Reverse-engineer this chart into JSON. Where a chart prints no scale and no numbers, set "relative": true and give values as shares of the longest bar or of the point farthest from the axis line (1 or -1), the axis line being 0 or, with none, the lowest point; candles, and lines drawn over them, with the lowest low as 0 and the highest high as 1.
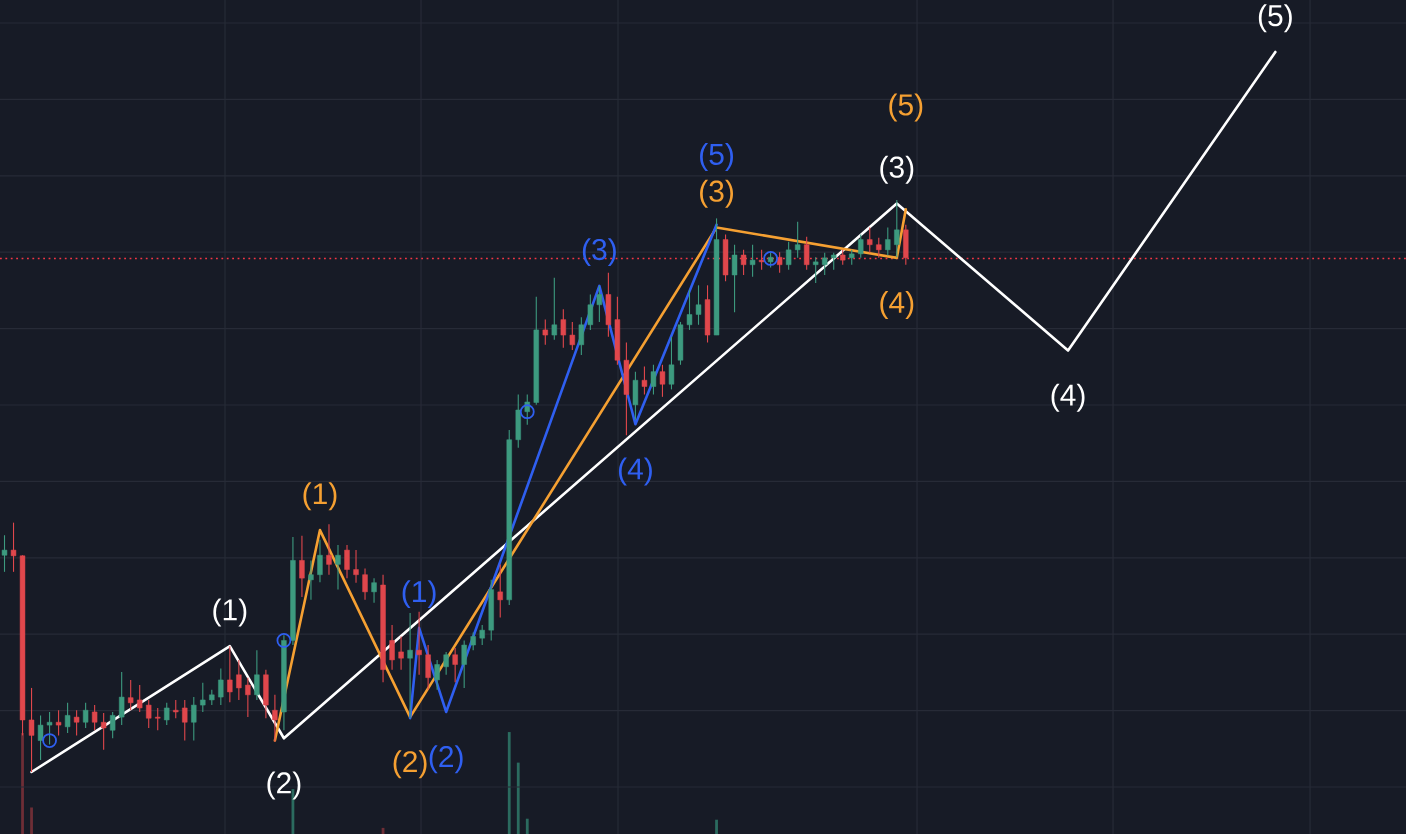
{
  "chart_data": [
    {
      "type": "candlestick",
      "relative": true,
      "grid": true,
      "categories": [
        null,
        null,
        null,
        null,
        null,
        null,
        null,
        null,
        null,
        null,
        null,
        null,
        null,
        null,
        null,
        null,
        null,
        null,
        null,
        null,
        null,
        null,
        null,
        null,
        null,
        null,
        null,
        null,
        null,
        null,
        null,
        null,
        null,
        null,
        null,
        null,
        null,
        null,
        null,
        null,
        null,
        null,
        null,
        null,
        null,
        null,
        null,
        null,
        null,
        null,
        null,
        null,
        null,
        null,
        null,
        null,
        null,
        null,
        null,
        null,
        null,
        null,
        null,
        null,
        null,
        null,
        null,
        null,
        null,
        null,
        null,
        null,
        null,
        null,
        null,
        null,
        null,
        null,
        null,
        null,
        null,
        null,
        null,
        null,
        null,
        null,
        null,
        null,
        null,
        null,
        null,
        null,
        null,
        null,
        null,
        null,
        null,
        null,
        null,
        null,
        null,
        null,
        null,
        null,
        null,
        null,
        null,
        null,
        null,
        null,
        null,
        null,
        null,
        null,
        null,
        null,
        null,
        null,
        null,
        null,
        null,
        null,
        null,
        null,
        null,
        null,
        null,
        null,
        null,
        null,
        null,
        null,
        null,
        null,
        null,
        null,
        null,
        null,
        null,
        null,
        null,
        null,
        null,
        null,
        null,
        null,
        null,
        null,
        null,
        null,
        null,
        null,
        null,
        null,
        null,
        null
      ],
      "colors": [
        "#3d9a7f",
        "#e0474c",
        "#e0474c",
        "#e0474c",
        "#3d9a7f",
        "#3d9a7f",
        "#e0474c",
        "#3d9a7f",
        "#e0474c",
        "#3d9a7f",
        "#e0474c",
        "#e0474c",
        "#3d9a7f",
        "#3d9a7f",
        "#e0474c",
        "#e0474c",
        "#e0474c",
        "#e0474c",
        "#3d9a7f",
        "#e0474c",
        "#e0474c",
        "#3d9a7f",
        "#3d9a7f",
        "#3d9a7f",
        "#3d9a7f",
        "#e0474c",
        "#e0474c",
        "#e0474c",
        "#3d9a7f",
        "#e0474c",
        "#e0474c",
        "#3d9a7f",
        "#3d9a7f",
        "#e0474c",
        "#3d9a7f",
        "#3d9a7f",
        "#e0474c",
        "#3d9a7f",
        "#e0474c",
        "#e0474c",
        "#e0474c",
        "#3d9a7f",
        "#e0474c",
        "#e0474c",
        "#e0474c",
        "#3d9a7f",
        "#e0474c",
        "#e0474c",
        "#3d9a7f",
        "#3d9a7f",
        "#e0474c",
        "#3d9a7f",
        "#3d9a7f",
        "#3d9a7f",
        "#3d9a7f",
        "#e0474c",
        "#3d9a7f",
        "#3d9a7f",
        "#3d9a7f",
        "#3d9a7f",
        "#e0474c",
        "#3d9a7f",
        "#e0474c",
        "#e0474c",
        "#3d9a7f",
        "#3d9a7f",
        "#3d9a7f",
        "#e0474c",
        "#e0474c",
        "#e0474c",
        "#3d9a7f",
        "#e0474c",
        "#3d9a7f",
        "#e0474c",
        "#3d9a7f",
        "#3d9a7f",
        "#3d9a7f",
        "#3d9a7f",
        "#e0474c",
        "#3d9a7f",
        "#e0474c",
        "#3d9a7f",
        "#e0474c",
        "#3d9a7f",
        "#e0474c",
        "#3d9a7f",
        "#e0474c",
        "#3d9a7f",
        "#3d9a7f",
        "#e0474c",
        "#3d9a7f",
        "#3d9a7f",
        "#3d9a7f",
        "#e0474c",
        "#3d9a7f",
        "#3d9a7f",
        "#e0474c",
        "#e0474c",
        "#3d9a7f",
        "#3d9a7f",
        "#e0474c",
        null,
        null,
        null,
        null,
        null,
        null,
        null,
        null,
        null,
        null,
        null,
        null,
        null,
        null,
        null,
        null,
        null,
        null,
        null,
        null,
        null,
        null,
        null,
        null,
        null,
        null,
        null,
        null,
        null,
        null,
        null,
        null,
        null,
        null,
        null,
        null,
        null,
        null,
        null,
        null,
        null,
        null,
        null,
        null,
        null,
        null,
        null,
        null,
        null,
        null,
        null,
        null,
        null,
        null,
        null
      ],
      "ohlc": [
        [
          0.379,
          0.414,
          0.35,
          0.388
        ],
        [
          0.388,
          0.436,
          0.35,
          0.378
        ],
        [
          0.378,
          0.379,
          0.064,
          0.091
        ],
        [
          0.091,
          0.147,
          0,
          0.064
        ],
        [
          0.055,
          0.099,
          0.021,
          0.082
        ],
        [
          0.082,
          0.105,
          0.048,
          0.087
        ],
        [
          0.087,
          0.108,
          0.064,
          0.082
        ],
        [
          0.079,
          0.121,
          0.068,
          0.099
        ],
        [
          0.096,
          0.108,
          0.064,
          0.087
        ],
        [
          0.087,
          0.121,
          0.077,
          0.108
        ],
        [
          0.105,
          0.117,
          0.073,
          0.087
        ],
        [
          0.087,
          0.103,
          0.039,
          0.077
        ],
        [
          0.073,
          0.105,
          0.059,
          0.099
        ],
        [
          0.096,
          0.175,
          0.082,
          0.131
        ],
        [
          0.13,
          0.161,
          0.108,
          0.121
        ],
        [
          0.126,
          0.152,
          0.105,
          0.112
        ],
        [
          0.117,
          0.126,
          0.077,
          0.094
        ],
        [
          0.096,
          0.112,
          0.073,
          0.094
        ],
        [
          0.091,
          0.121,
          0.082,
          0.112
        ],
        [
          0.108,
          0.126,
          0.094,
          0.105
        ],
        [
          0.112,
          0.126,
          0.055,
          0.087
        ],
        [
          0.087,
          0.131,
          0.055,
          0.117
        ],
        [
          0.117,
          0.156,
          0.105,
          0.126
        ],
        [
          0.126,
          0.144,
          0.117,
          0.135
        ],
        [
          0.131,
          0.181,
          0.117,
          0.161
        ],
        [
          0.161,
          0.22,
          0.122,
          0.14
        ],
        [
          0.17,
          0.196,
          0.126,
          0.147
        ],
        [
          0.152,
          0.165,
          0.096,
          0.135
        ],
        [
          0.135,
          0.213,
          0.126,
          0.17
        ],
        [
          0.17,
          0.179,
          0.094,
          0.117
        ],
        [
          0.108,
          0.135,
          0.053,
          0.091
        ],
        [
          0.105,
          0.239,
          0.073,
          0.23
        ],
        [
          0.23,
          0.411,
          0.222,
          0.37
        ],
        [
          0.37,
          0.413,
          0.306,
          0.339
        ],
        [
          0.336,
          0.37,
          0.301,
          0.345
        ],
        [
          0.345,
          0.406,
          0.332,
          0.379
        ],
        [
          0.379,
          0.433,
          0.345,
          0.363
        ],
        [
          0.363,
          0.397,
          0.319,
          0.379
        ],
        [
          0.388,
          0.397,
          0.339,
          0.354
        ],
        [
          0.354,
          0.388,
          0.331,
          0.345
        ],
        [
          0.345,
          0.356,
          0.301,
          0.315
        ],
        [
          0.315,
          0.339,
          0.296,
          0.331
        ],
        [
          0.327,
          0.345,
          0.157,
          0.179
        ],
        [
          0.23,
          0.257,
          0.179,
          0.196
        ],
        [
          0.21,
          0.237,
          0.179,
          0.199
        ],
        [
          0.199,
          0.278,
          0.094,
          0.213
        ],
        [
          0.213,
          0.28,
          0.17,
          0.205
        ],
        [
          0.205,
          0.222,
          0.144,
          0.165
        ],
        [
          0.161,
          0.196,
          0.144,
          0.188
        ],
        [
          0.184,
          0.21,
          0.17,
          0.205
        ],
        [
          0.205,
          0.217,
          0.157,
          0.188
        ],
        [
          0.188,
          0.23,
          0.147,
          0.222
        ],
        [
          0.222,
          0.244,
          0.213,
          0.237
        ],
        [
          0.234,
          0.257,
          0.222,
          0.248
        ],
        [
          0.248,
          0.336,
          0.23,
          0.319
        ],
        [
          0.315,
          0.363,
          0.27,
          0.301
        ],
        [
          0.301,
          0.598,
          0.292,
          0.581
        ],
        [
          0.581,
          0.66,
          0.567,
          0.633
        ],
        [
          0.63,
          0.66,
          0.607,
          0.647
        ],
        [
          0.646,
          0.831,
          0.642,
          0.773
        ],
        [
          0.773,
          0.791,
          0.747,
          0.764
        ],
        [
          0.764,
          0.864,
          0.756,
          0.782
        ],
        [
          0.791,
          0.809,
          0.742,
          0.764
        ],
        [
          0.764,
          0.787,
          0.738,
          0.747
        ],
        [
          0.747,
          0.795,
          0.729,
          0.782
        ],
        [
          0.782,
          0.835,
          0.773,
          0.817
        ],
        [
          0.817,
          0.85,
          0.787,
          0.835
        ],
        [
          0.835,
          0.873,
          0.761,
          0.782
        ],
        [
          0.791,
          0.831,
          0.712,
          0.72
        ],
        [
          0.72,
          0.751,
          0.589,
          0.66
        ],
        [
          0.642,
          0.7,
          0.616,
          0.685
        ],
        [
          0.685,
          0.709,
          0.66,
          0.674
        ],
        [
          0.674,
          0.712,
          0.66,
          0.7
        ],
        [
          0.7,
          0.712,
          0.656,
          0.678
        ],
        [
          0.678,
          0.761,
          0.669,
          0.712
        ],
        [
          0.72,
          0.787,
          0.712,
          0.782
        ],
        [
          0.782,
          0.843,
          0.773,
          0.8
        ],
        [
          0.8,
          0.851,
          0.782,
          0.817
        ],
        [
          0.826,
          0.851,
          0.751,
          0.764
        ],
        [
          0.764,
          0.968,
          0.764,
          0.931
        ],
        [
          0.931,
          0.94,
          0.858,
          0.869
        ],
        [
          0.869,
          0.922,
          0.804,
          0.904
        ],
        [
          0.904,
          0.913,
          0.869,
          0.887
        ],
        [
          0.887,
          0.922,
          0.866,
          0.895
        ],
        [
          0.895,
          0.913,
          0.878,
          0.892
        ],
        [
          0.892,
          0.909,
          0.882,
          0.9
        ],
        [
          0.9,
          0.909,
          0.873,
          0.887
        ],
        [
          0.887,
          0.927,
          0.878,
          0.913
        ],
        [
          0.913,
          0.962,
          0.899,
          0.922
        ],
        [
          0.922,
          0.936,
          0.878,
          0.887
        ],
        [
          0.887,
          0.9,
          0.855,
          0.892
        ],
        [
          0.887,
          0.908,
          0.869,
          0.899
        ],
        [
          0.899,
          0.908,
          0.878,
          0.904
        ],
        [
          0.904,
          0.913,
          0.887,
          0.895
        ],
        [
          0.899,
          0.913,
          0.887,
          0.906
        ],
        [
          0.906,
          0.94,
          0.899,
          0.931
        ],
        [
          0.931,
          0.952,
          0.908,
          0.922
        ],
        [
          0.922,
          0.934,
          0.899,
          0.913
        ],
        [
          0.913,
          0.952,
          0.903,
          0.931
        ],
        [
          0.922,
          1,
          0.9,
          0.948
        ],
        [
          0.948,
          0.957,
          0.887,
          0.899
        ],
        null,
        null,
        null,
        null,
        null,
        null,
        null,
        null,
        null,
        null,
        null,
        null,
        null,
        null,
        null,
        null,
        null,
        null,
        null,
        null,
        null,
        null,
        null,
        null,
        null,
        null,
        null,
        null,
        null,
        null,
        null,
        null,
        null,
        null,
        null,
        null,
        null,
        null,
        null,
        null,
        null,
        null,
        null,
        null,
        null,
        null,
        null,
        null,
        null,
        null,
        null,
        null,
        null,
        null,
        null
      ],
      "series": [
        {
          "type": "line",
          "color": "#ffffff",
          "values": [
            null,
            null,
            null,
            0,
            null,
            null,
            null,
            null,
            null,
            null,
            null,
            null,
            null,
            null,
            null,
            null,
            null,
            null,
            null,
            null,
            null,
            null,
            null,
            null,
            null,
            0.22,
            null,
            null,
            null,
            null,
            null,
            0.059,
            null,
            null,
            null,
            null,
            null,
            null,
            null,
            null,
            null,
            null,
            null,
            null,
            null,
            null,
            null,
            null,
            null,
            null,
            null,
            null,
            null,
            null,
            null,
            null,
            null,
            null,
            null,
            null,
            null,
            null,
            null,
            null,
            null,
            null,
            null,
            null,
            null,
            null,
            null,
            null,
            null,
            null,
            null,
            null,
            null,
            null,
            null,
            null,
            null,
            null,
            null,
            null,
            null,
            null,
            null,
            null,
            null,
            null,
            null,
            null,
            null,
            null,
            null,
            null,
            null,
            null,
            null,
            0.994,
            null,
            null,
            null,
            null,
            null,
            null,
            null,
            null,
            null,
            null,
            null,
            null,
            null,
            null,
            null,
            null,
            null,
            null,
            0.737,
            null,
            null,
            null,
            null,
            null,
            null,
            null,
            null,
            null,
            null,
            null,
            null,
            null,
            null,
            null,
            null,
            null,
            null,
            null,
            null,
            null,
            null,
            1.259,
            null,
            null,
            null,
            null,
            null,
            null,
            null,
            null,
            null,
            null,
            null,
            null,
            null,
            null
          ]
        },
        {
          "type": "line",
          "color": "#f5a032",
          "values": [
            null,
            null,
            null,
            null,
            null,
            null,
            null,
            null,
            null,
            null,
            null,
            null,
            null,
            null,
            null,
            null,
            null,
            null,
            null,
            null,
            null,
            null,
            null,
            null,
            null,
            null,
            null,
            null,
            null,
            null,
            0.055,
            null,
            null,
            null,
            null,
            0.423,
            null,
            null,
            null,
            null,
            null,
            null,
            null,
            null,
            null,
            0.096,
            null,
            null,
            null,
            null,
            null,
            null,
            null,
            null,
            null,
            null,
            null,
            null,
            null,
            null,
            null,
            null,
            null,
            null,
            null,
            null,
            null,
            null,
            null,
            null,
            null,
            null,
            null,
            null,
            null,
            null,
            null,
            null,
            null,
            0.952,
            null,
            null,
            null,
            null,
            null,
            null,
            null,
            null,
            null,
            null,
            null,
            null,
            null,
            null,
            null,
            null,
            null,
            null,
            null,
            0.899,
            0.984,
            null,
            null,
            null,
            null,
            null,
            null,
            null,
            null,
            null,
            null,
            null,
            null,
            null,
            null,
            null,
            null,
            null,
            null,
            null,
            null,
            null,
            null,
            null,
            null,
            null,
            null,
            null,
            null,
            null,
            null,
            null,
            null,
            null,
            null,
            null,
            null,
            null,
            null,
            null,
            null,
            null,
            null,
            null,
            null,
            null,
            null,
            null,
            null,
            null,
            null,
            null,
            null,
            null,
            null,
            null
          ]
        },
        {
          "type": "line",
          "color": "#2f5ff0",
          "values": [
            null,
            null,
            null,
            null,
            null,
            null,
            null,
            null,
            null,
            null,
            null,
            null,
            null,
            null,
            null,
            null,
            null,
            null,
            null,
            null,
            null,
            null,
            null,
            null,
            null,
            null,
            null,
            null,
            null,
            null,
            null,
            null,
            null,
            null,
            null,
            null,
            null,
            null,
            null,
            null,
            null,
            null,
            null,
            null,
            null,
            0.094,
            0.252,
            null,
            null,
            0.105,
            null,
            null,
            null,
            null,
            null,
            null,
            null,
            null,
            null,
            null,
            null,
            null,
            null,
            null,
            null,
            null,
            0.85,
            null,
            null,
            null,
            0.608,
            null,
            null,
            null,
            null,
            null,
            null,
            null,
            null,
            0.957,
            null,
            null,
            null,
            null,
            null,
            null,
            null,
            null,
            null,
            null,
            null,
            null,
            null,
            null,
            null,
            null,
            null,
            null,
            null,
            null,
            null,
            null,
            null,
            null,
            null,
            null,
            null,
            null,
            null,
            null,
            null,
            null,
            null,
            null,
            null,
            null,
            null,
            null,
            null,
            null,
            null,
            null,
            null,
            null,
            null,
            null,
            null,
            null,
            null,
            null,
            null,
            null,
            null,
            null,
            null,
            null,
            null,
            null,
            null,
            null,
            null,
            null,
            null,
            null,
            null,
            null,
            null,
            null,
            null,
            null,
            null,
            null,
            null,
            null,
            null,
            null
          ]
        },
        {
          "type": "scatter",
          "color": "#2f5ff0",
          "marker": "circle",
          "values": [
            null,
            null,
            null,
            null,
            null,
            0.055,
            null,
            null,
            null,
            null,
            null,
            null,
            null,
            null,
            null,
            null,
            null,
            null,
            null,
            null,
            null,
            null,
            null,
            null,
            null,
            null,
            null,
            null,
            null,
            null,
            null,
            0.23,
            null,
            null,
            null,
            null,
            null,
            null,
            null,
            null,
            null,
            null,
            null,
            null,
            null,
            null,
            null,
            null,
            null,
            null,
            null,
            null,
            null,
            null,
            null,
            null,
            null,
            null,
            0.63,
            null,
            null,
            null,
            null,
            null,
            null,
            null,
            null,
            null,
            null,
            null,
            null,
            null,
            null,
            null,
            null,
            null,
            null,
            null,
            null,
            null,
            null,
            null,
            null,
            null,
            null,
            0.898,
            null,
            null,
            null,
            null,
            null,
            null,
            null,
            null,
            null,
            null,
            null,
            null,
            null,
            null,
            null,
            null,
            null,
            null,
            null,
            null,
            null,
            null,
            null,
            null,
            null,
            null,
            null,
            null,
            null,
            null,
            null,
            null,
            null,
            null,
            null,
            null,
            null,
            null,
            null,
            null,
            null,
            null,
            null,
            null,
            null,
            null,
            null,
            null,
            null,
            null,
            null,
            null,
            null,
            null,
            null,
            null,
            null,
            null,
            null,
            null,
            null,
            null,
            null,
            null,
            null,
            null,
            null,
            null,
            null,
            null
          ]
        }
      ],
      "annotations": [
        {
          "text": "(1)",
          "y": 0.22
        },
        {
          "text": "(2)",
          "y": 0.059
        },
        {
          "text": "(3)",
          "y": 0.994
        },
        {
          "text": "(4)",
          "y": 0.737
        },
        {
          "text": "(5)",
          "y": 1.259
        },
        {
          "text": "(1)",
          "y": 0.423
        },
        {
          "text": "(2)",
          "y": 0.096
        },
        {
          "text": "(3)",
          "y": 0.952
        },
        {
          "text": "(4)",
          "y": 0.899
        },
        {
          "text": "(5)",
          "y": 0.984
        },
        {
          "text": "(1)",
          "y": 0.252
        },
        {
          "text": "(2)",
          "y": 0.105
        },
        {
          "text": "(3)",
          "y": 0.85
        },
        {
          "text": "(4)",
          "y": 0.608
        },
        {
          "text": "(5)",
          "y": 0.957
        }
      ],
      "ref_lines": [
        {
          "axis": "y",
          "value": 0.898,
          "color": "#f23645",
          "line_style": "dotted"
        }
      ]
    },
    {
      "type": "bar",
      "relative": true,
      "categories": [
        null,
        null,
        null,
        null,
        null,
        null,
        null,
        null,
        null,
        null,
        null,
        null,
        null,
        null,
        null,
        null,
        null,
        null,
        null,
        null,
        null,
        null,
        null,
        null,
        null,
        null,
        null,
        null,
        null,
        null,
        null,
        null,
        null,
        null,
        null,
        null,
        null,
        null,
        null,
        null,
        null,
        null,
        null,
        null,
        null,
        null,
        null,
        null,
        null,
        null,
        null,
        null,
        null,
        null,
        null,
        null,
        null,
        null,
        null,
        null,
        null,
        null,
        null,
        null,
        null,
        null,
        null,
        null,
        null,
        null,
        null,
        null,
        null,
        null,
        null,
        null,
        null,
        null,
        null,
        null,
        null,
        null,
        null,
        null,
        null,
        null,
        null,
        null,
        null,
        null,
        null,
        null,
        null,
        null,
        null,
        null,
        null,
        null,
        null,
        null,
        null,
        null,
        null,
        null,
        null,
        null,
        null,
        null,
        null,
        null,
        null,
        null,
        null,
        null,
        null,
        null,
        null,
        null,
        null,
        null,
        null,
        null,
        null,
        null,
        null,
        null,
        null,
        null,
        null,
        null,
        null,
        null,
        null,
        null,
        null,
        null,
        null,
        null,
        null,
        null,
        null,
        null,
        null,
        null,
        null,
        null,
        null,
        null,
        null,
        null,
        null,
        null,
        null,
        null,
        null,
        null
      ],
      "values": [
        null,
        null,
        0.99,
        0.26,
        null,
        null,
        null,
        null,
        null,
        null,
        null,
        null,
        null,
        null,
        null,
        null,
        null,
        null,
        null,
        null,
        null,
        null,
        null,
        null,
        null,
        null,
        null,
        null,
        null,
        null,
        null,
        null,
        0.44,
        null,
        null,
        null,
        null,
        null,
        null,
        null,
        null,
        null,
        0.06,
        null,
        null,
        null,
        null,
        null,
        null,
        null,
        null,
        null,
        null,
        null,
        null,
        null,
        1,
        0.7,
        0.15,
        null,
        null,
        null,
        null,
        null,
        null,
        null,
        null,
        null,
        null,
        null,
        null,
        null,
        null,
        null,
        null,
        null,
        null,
        null,
        null,
        0.14,
        null,
        null,
        null,
        null,
        null,
        null,
        null,
        null,
        null,
        null,
        null,
        null,
        null,
        null,
        null,
        null,
        null,
        null,
        null,
        null,
        null,
        null,
        null,
        null,
        null,
        null,
        null,
        null,
        null,
        null,
        null,
        null,
        null,
        null,
        null,
        null,
        null,
        null,
        null,
        null,
        null,
        null,
        null,
        null,
        null,
        null,
        null,
        null,
        null,
        null,
        null,
        null,
        null,
        null,
        null,
        null,
        null,
        null,
        null,
        null,
        null,
        null,
        null,
        null,
        null,
        null,
        null,
        null,
        null,
        null,
        null,
        null,
        null,
        null,
        null,
        null
      ],
      "colors": [
        null,
        null,
        "#6e2e36",
        "#6e2e36",
        null,
        null,
        null,
        null,
        null,
        null,
        null,
        null,
        null,
        null,
        null,
        null,
        null,
        null,
        null,
        null,
        null,
        null,
        null,
        null,
        null,
        null,
        null,
        null,
        null,
        null,
        null,
        null,
        "#2b6b5f",
        null,
        null,
        null,
        null,
        null,
        null,
        null,
        null,
        null,
        "#6e2e36",
        null,
        null,
        null,
        null,
        null,
        null,
        null,
        null,
        null,
        null,
        null,
        null,
        null,
        "#2b6b5f",
        "#2b6b5f",
        "#2b6b5f",
        null,
        null,
        null,
        null,
        null,
        null,
        null,
        null,
        null,
        null,
        null,
        null,
        null,
        null,
        null,
        null,
        null,
        null,
        null,
        null,
        "#2b6b5f",
        null,
        null,
        null,
        null,
        null,
        null,
        null,
        null,
        null,
        null,
        null,
        null,
        null,
        null,
        null,
        null,
        null,
        null,
        null,
        null,
        null,
        null,
        null,
        null,
        null,
        null,
        null,
        null,
        null,
        null,
        null,
        null,
        null,
        null,
        null,
        null,
        null,
        null,
        null,
        null,
        null,
        null,
        null,
        null,
        null,
        null,
        null,
        null,
        null,
        null,
        null,
        null,
        null,
        null,
        null,
        null,
        null,
        null,
        null,
        null,
        null,
        null,
        null,
        null,
        null,
        null,
        null,
        null,
        null,
        null,
        null,
        null,
        null,
        null,
        null,
        null
      ]
    }
  ]
}
